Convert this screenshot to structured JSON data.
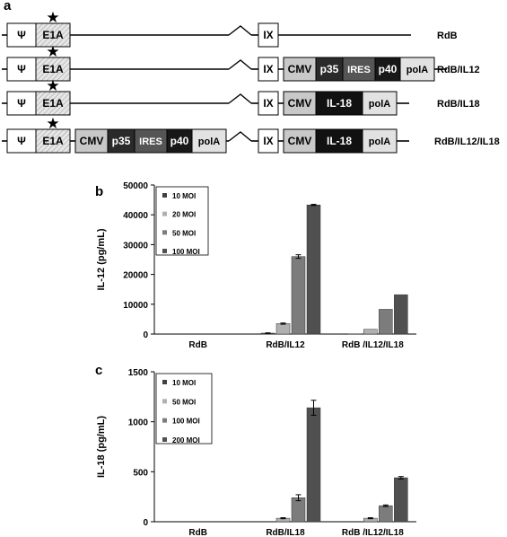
{
  "panels": {
    "a": "a",
    "b": "b",
    "c": "c"
  },
  "colors": {
    "s1": "#404040",
    "s2": "#b0b0b0",
    "s3": "#7c7c7c",
    "s4": "#505050",
    "cmv": "#c8c8c8",
    "p35": "#2a2a2a",
    "ires": "#555555",
    "p40": "#181818",
    "il18": "#111111",
    "polya": "#e2e2e2",
    "e1a": "#e6e6e6"
  },
  "constructs": [
    {
      "name": "RdB",
      "left": [
        {
          "label": "Ψ",
          "kind": "psi"
        },
        {
          "label": "E1A",
          "kind": "e1a",
          "star": true
        }
      ],
      "left_cassette": [],
      "right": [
        {
          "label": "IX",
          "kind": "ix"
        }
      ],
      "right_cassette": []
    },
    {
      "name": "RdB/IL12",
      "left": [
        {
          "label": "Ψ",
          "kind": "psi"
        },
        {
          "label": "E1A",
          "kind": "e1a",
          "star": true
        }
      ],
      "left_cassette": [],
      "right": [
        {
          "label": "IX",
          "kind": "ix"
        }
      ],
      "right_cassette": [
        {
          "label": "CMV",
          "kind": "cmv"
        },
        {
          "label": "p35",
          "kind": "p35"
        },
        {
          "label": "IRES",
          "kind": "ires"
        },
        {
          "label": "p40",
          "kind": "p40"
        },
        {
          "label": "polA",
          "kind": "polya"
        }
      ]
    },
    {
      "name": "RdB/IL18",
      "left": [
        {
          "label": "Ψ",
          "kind": "psi"
        },
        {
          "label": "E1A",
          "kind": "e1a",
          "star": true
        }
      ],
      "left_cassette": [],
      "right": [
        {
          "label": "IX",
          "kind": "ix"
        }
      ],
      "right_cassette": [
        {
          "label": "CMV",
          "kind": "cmv"
        },
        {
          "label": "IL-18",
          "kind": "il18"
        },
        {
          "label": "polA",
          "kind": "polya"
        }
      ]
    },
    {
      "name": "RdB/IL12/IL18",
      "left": [
        {
          "label": "Ψ",
          "kind": "psi"
        },
        {
          "label": "E1A",
          "kind": "e1a",
          "star": true
        }
      ],
      "left_cassette": [
        {
          "label": "CMV",
          "kind": "cmv"
        },
        {
          "label": "p35",
          "kind": "p35"
        },
        {
          "label": "IRES",
          "kind": "ires"
        },
        {
          "label": "p40",
          "kind": "p40"
        },
        {
          "label": "polA",
          "kind": "polya"
        }
      ],
      "right": [
        {
          "label": "IX",
          "kind": "ix"
        }
      ],
      "right_cassette": [
        {
          "label": "CMV",
          "kind": "cmv"
        },
        {
          "label": "IL-18",
          "kind": "il18"
        },
        {
          "label": "polA",
          "kind": "polya"
        }
      ]
    }
  ],
  "chart_data": [
    {
      "type": "bar",
      "panel": "b",
      "title": "",
      "xlabel": "",
      "ylabel": "IL-12 (pg/mL)",
      "ylim": [
        0,
        50000
      ],
      "yticks": [
        "0",
        "10000",
        "20000",
        "30000",
        "40000",
        "50000"
      ],
      "categories": [
        "RdB",
        "RdB/IL12",
        "RdB /IL12/IL18"
      ],
      "legend_position": "top-left",
      "series": [
        {
          "name": "10 MOI",
          "values": [
            0,
            300,
            50
          ],
          "errors": [
            0,
            100,
            0
          ]
        },
        {
          "name": "20 MOI",
          "values": [
            0,
            3500,
            1600
          ],
          "errors": [
            0,
            200,
            0
          ]
        },
        {
          "name": "50 MOI",
          "values": [
            0,
            26000,
            8300
          ],
          "errors": [
            0,
            600,
            0
          ]
        },
        {
          "name": "100 MOI",
          "values": [
            0,
            43300,
            13200
          ],
          "errors": [
            0,
            200,
            0
          ]
        }
      ]
    },
    {
      "type": "bar",
      "panel": "c",
      "title": "",
      "xlabel": "",
      "ylabel": "IL-18 (pg/mL)",
      "ylim": [
        0,
        1500
      ],
      "yticks": [
        "0",
        "500",
        "1000",
        "1500"
      ],
      "categories": [
        "RdB",
        "RdB/IL18",
        "RdB /IL12/IL18"
      ],
      "legend_position": "top-left",
      "series": [
        {
          "name": "10 MOI",
          "values": [
            0,
            0,
            0
          ],
          "errors": [
            0,
            0,
            0
          ]
        },
        {
          "name": "50 MOI",
          "values": [
            0,
            35,
            35
          ],
          "errors": [
            0,
            5,
            5
          ]
        },
        {
          "name": "100 MOI",
          "values": [
            0,
            240,
            160
          ],
          "errors": [
            0,
            30,
            8
          ]
        },
        {
          "name": "200 MOI",
          "values": [
            0,
            1140,
            440
          ],
          "errors": [
            0,
            75,
            12
          ]
        }
      ]
    }
  ]
}
